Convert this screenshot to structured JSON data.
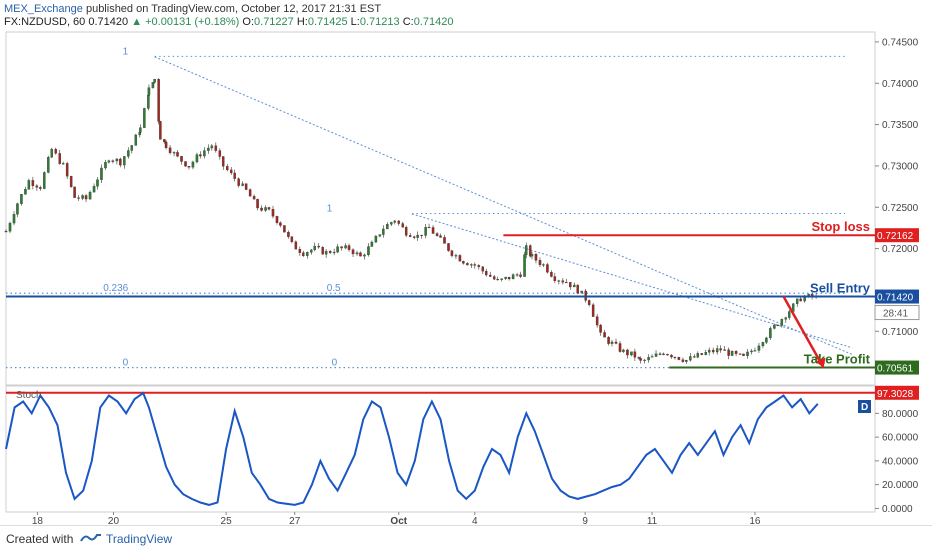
{
  "header": {
    "author": "MEX_Exchange",
    "published": "published on TradingView.com, October 12, 2017 21:31 EST",
    "symbol": "FX:NZDUSD, 60",
    "last": "0.71420",
    "change": "▲ +0.00131 (+0.18%)",
    "o_label": "O:",
    "o": "0.71227",
    "h_label": "H:",
    "h": "0.71425",
    "l_label": "L:",
    "l": "0.71213",
    "c_label": "C:",
    "c": "0.71420"
  },
  "footer": {
    "created_with": "Created with",
    "brand": "TradingView"
  },
  "chart_data": [
    {
      "type": "candlestick",
      "series_name": "FX:NZDUSD, 60",
      "ylim": [
        0.7035,
        0.7462
      ],
      "price_ticks": [
        "0.74500",
        "0.74000",
        "0.73500",
        "0.73000",
        "0.72500",
        "0.72000",
        "0.71000"
      ],
      "x_ticks": [
        "18",
        "20",
        "25",
        "27",
        "Oct",
        "4",
        "9",
        "11",
        "16"
      ],
      "price_path": [
        [
          0,
          0.7221
        ],
        [
          2,
          0.7255
        ],
        [
          4,
          0.7282
        ],
        [
          6,
          0.7275
        ],
        [
          8,
          0.732
        ],
        [
          10,
          0.73
        ],
        [
          12,
          0.7262
        ],
        [
          14,
          0.726
        ],
        [
          16,
          0.7285
        ],
        [
          18,
          0.731
        ],
        [
          20,
          0.7305
        ],
        [
          22,
          0.7325
        ],
        [
          23.5,
          0.7345
        ],
        [
          25,
          0.7392
        ],
        [
          26,
          0.7405
        ],
        [
          27,
          0.7335
        ],
        [
          28,
          0.7325
        ],
        [
          30,
          0.731
        ],
        [
          32,
          0.73
        ],
        [
          34,
          0.7315
        ],
        [
          36,
          0.7325
        ],
        [
          38,
          0.73
        ],
        [
          40,
          0.7285
        ],
        [
          42,
          0.727
        ],
        [
          44,
          0.725
        ],
        [
          46,
          0.7245
        ],
        [
          48,
          0.723
        ],
        [
          50,
          0.7205
        ],
        [
          52,
          0.7195
        ],
        [
          54,
          0.72
        ],
        [
          56,
          0.7195
        ],
        [
          58,
          0.72
        ],
        [
          60,
          0.72
        ],
        [
          62,
          0.719
        ],
        [
          64,
          0.7205
        ],
        [
          66,
          0.7225
        ],
        [
          68,
          0.7235
        ],
        [
          70,
          0.722
        ],
        [
          72,
          0.7215
        ],
        [
          74,
          0.7225
        ],
        [
          76,
          0.721
        ],
        [
          78,
          0.7195
        ],
        [
          80,
          0.7185
        ],
        [
          82,
          0.718
        ],
        [
          84,
          0.717
        ],
        [
          86,
          0.716
        ],
        [
          88,
          0.7165
        ],
        [
          90,
          0.717
        ],
        [
          91,
          0.72
        ],
        [
          92,
          0.719
        ],
        [
          94,
          0.718
        ],
        [
          96,
          0.7165
        ],
        [
          98,
          0.716
        ],
        [
          100,
          0.715
        ],
        [
          102,
          0.7135
        ],
        [
          104,
          0.7095
        ],
        [
          106,
          0.7085
        ],
        [
          108,
          0.7075
        ],
        [
          110,
          0.707
        ],
        [
          111,
          0.7063
        ],
        [
          113,
          0.7068
        ],
        [
          115,
          0.7075
        ],
        [
          117,
          0.707
        ],
        [
          119,
          0.7065
        ],
        [
          121,
          0.707
        ],
        [
          123,
          0.7075
        ],
        [
          125,
          0.7078
        ],
        [
          127,
          0.7072
        ],
        [
          129,
          0.7068
        ],
        [
          131,
          0.708
        ],
        [
          133,
          0.7095
        ],
        [
          135,
          0.711
        ],
        [
          137,
          0.7125
        ],
        [
          139,
          0.714
        ],
        [
          141,
          0.7142
        ],
        [
          142,
          0.714
        ]
      ],
      "fib_levels": [
        {
          "label": "1",
          "price": 0.74325,
          "x_from": 26,
          "x_to": 152
        },
        {
          "label": "1",
          "price": 0.72425,
          "x_from": 71,
          "x_to": 152
        },
        {
          "label": "0.236",
          "price": 0.7146,
          "x_from": 0,
          "x_to": 152
        },
        {
          "label": "0.5",
          "price": 0.7146,
          "x_from": 0,
          "x_to": 152
        },
        {
          "label": "0",
          "price": 0.7056,
          "x_from": 0,
          "x_to": 152
        },
        {
          "label": "0",
          "price": 0.7056,
          "x_from": 0,
          "x_to": 152
        }
      ],
      "trend_lines": [
        {
          "from": [
            26,
            0.7432
          ],
          "to": [
            148,
            0.7072
          ]
        },
        {
          "from": [
            71,
            0.7242
          ],
          "to": [
            148,
            0.708
          ]
        }
      ],
      "levels": [
        {
          "label": "Stop loss",
          "price": 0.72162,
          "price_label": "0.72162",
          "color": "#e02020",
          "x_from": 87,
          "x_to": 152
        },
        {
          "label": "Sell Entry",
          "price": 0.7142,
          "price_label": "0.71420",
          "color": "#1a4fa0",
          "x_from": 0,
          "x_to": 152
        },
        {
          "label": "Take Profit",
          "price": 0.70561,
          "price_label": "0.70561",
          "color": "#2e6b1e",
          "x_from": 116,
          "x_to": 152
        }
      ],
      "projection": {
        "from": [
          136,
          0.7142
        ],
        "to": [
          143,
          0.7056
        ],
        "color": "#e02020"
      },
      "countdown_label": "28:41"
    },
    {
      "type": "line",
      "series_name": "Stoch",
      "ylim": [
        -3,
        103
      ],
      "ticks": [
        "80.0000",
        "60.0000",
        "40.0000",
        "20.0000",
        "0.0000"
      ],
      "threshold_label": "97.3028",
      "threshold_value": 97.3028,
      "tag_label": "D",
      "color": "#1a56c4",
      "values": [
        [
          0,
          50
        ],
        [
          1.5,
          85
        ],
        [
          3,
          90
        ],
        [
          4.5,
          80
        ],
        [
          6,
          95
        ],
        [
          7.5,
          85
        ],
        [
          9,
          70
        ],
        [
          10.5,
          30
        ],
        [
          12,
          8
        ],
        [
          13.5,
          15
        ],
        [
          15,
          40
        ],
        [
          16.5,
          85
        ],
        [
          18,
          95
        ],
        [
          19.5,
          90
        ],
        [
          21,
          80
        ],
        [
          22.5,
          92
        ],
        [
          24,
          97
        ],
        [
          25,
          85
        ],
        [
          26.5,
          60
        ],
        [
          28,
          35
        ],
        [
          29.5,
          20
        ],
        [
          31,
          12
        ],
        [
          32.5,
          8
        ],
        [
          34,
          5
        ],
        [
          35.5,
          3
        ],
        [
          37,
          5
        ],
        [
          38.5,
          50
        ],
        [
          40,
          82
        ],
        [
          41.5,
          60
        ],
        [
          43,
          30
        ],
        [
          44.5,
          20
        ],
        [
          46,
          8
        ],
        [
          47.5,
          5
        ],
        [
          49,
          4
        ],
        [
          50.5,
          3
        ],
        [
          52,
          5
        ],
        [
          53.5,
          20
        ],
        [
          55,
          40
        ],
        [
          56.5,
          25
        ],
        [
          58,
          15
        ],
        [
          59.5,
          30
        ],
        [
          61,
          45
        ],
        [
          62.5,
          75
        ],
        [
          64,
          90
        ],
        [
          65.5,
          85
        ],
        [
          67,
          60
        ],
        [
          68.5,
          30
        ],
        [
          70,
          20
        ],
        [
          71.5,
          40
        ],
        [
          73,
          75
        ],
        [
          74.5,
          90
        ],
        [
          76,
          75
        ],
        [
          77.5,
          40
        ],
        [
          79,
          15
        ],
        [
          80.5,
          8
        ],
        [
          82,
          15
        ],
        [
          83.5,
          35
        ],
        [
          85,
          50
        ],
        [
          86.5,
          45
        ],
        [
          88,
          30
        ],
        [
          89.5,
          60
        ],
        [
          91,
          80
        ],
        [
          92.5,
          65
        ],
        [
          94,
          45
        ],
        [
          95.5,
          25
        ],
        [
          97,
          15
        ],
        [
          98.5,
          10
        ],
        [
          100,
          8
        ],
        [
          101.5,
          10
        ],
        [
          103,
          12
        ],
        [
          104.5,
          15
        ],
        [
          106,
          18
        ],
        [
          107.5,
          20
        ],
        [
          109,
          25
        ],
        [
          110.5,
          35
        ],
        [
          112,
          45
        ],
        [
          113.5,
          50
        ],
        [
          115,
          40
        ],
        [
          116.5,
          30
        ],
        [
          118,
          45
        ],
        [
          119.5,
          55
        ],
        [
          121,
          45
        ],
        [
          122.5,
          55
        ],
        [
          124,
          65
        ],
        [
          125.5,
          45
        ],
        [
          127,
          60
        ],
        [
          128.5,
          70
        ],
        [
          130,
          55
        ],
        [
          131.5,
          75
        ],
        [
          133,
          85
        ],
        [
          134.5,
          90
        ],
        [
          136,
          95
        ],
        [
          137.5,
          85
        ],
        [
          139,
          92
        ],
        [
          140.5,
          80
        ],
        [
          142,
          88
        ]
      ]
    }
  ]
}
